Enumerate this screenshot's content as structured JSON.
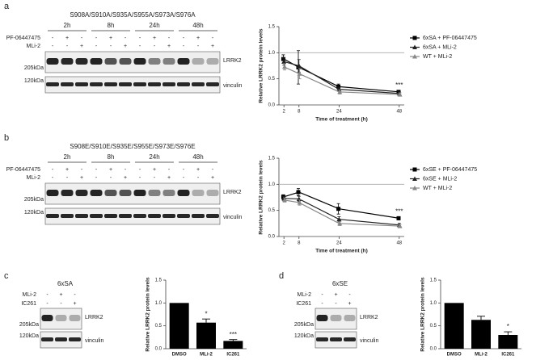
{
  "panels": [
    {
      "label": "a",
      "blot": {
        "title": "S908A/S910A/S935A/S955A/S973A/S976A",
        "groups": [
          "2h",
          "8h",
          "24h",
          "48h"
        ],
        "rows": [
          {
            "name": "PF-06447475",
            "signs": [
              "-",
              "+",
              "-",
              "-",
              "+",
              "-",
              "-",
              "+",
              "-",
              "-",
              "+",
              "-"
            ]
          },
          {
            "name": "MLi-2",
            "signs": [
              "-",
              "-",
              "+",
              "-",
              "-",
              "+",
              "-",
              "-",
              "+",
              "-",
              "-",
              "+"
            ]
          }
        ],
        "markers": [
          "205kDa",
          "120kDa"
        ],
        "bands": [
          "LRRK2",
          "vinculin"
        ]
      }
    },
    {
      "label": "b",
      "blot": {
        "title": "S908E/S910E/S935E/S955E/S973E/S976E",
        "groups": [
          "2h",
          "8h",
          "24h",
          "48h"
        ],
        "rows": [
          {
            "name": "PF-06447475",
            "signs": [
              "-",
              "+",
              "-",
              "-",
              "+",
              "-",
              "-",
              "+",
              "-",
              "-",
              "+",
              "-"
            ]
          },
          {
            "name": "MLi-2",
            "signs": [
              "-",
              "-",
              "+",
              "-",
              "-",
              "+",
              "-",
              "-",
              "+",
              "-",
              "-",
              "+"
            ]
          }
        ],
        "markers": [
          "205kDa",
          "120kDa"
        ],
        "bands": [
          "LRRK2",
          "vinculin"
        ]
      }
    },
    {
      "label": "c",
      "blot": {
        "title": "6xSA",
        "rows": [
          {
            "name": "MLi-2",
            "signs": [
              "-",
              "+",
              "-"
            ]
          },
          {
            "name": "IC261",
            "signs": [
              "-",
              "-",
              "+"
            ]
          }
        ],
        "markers": [
          "205kDa",
          "120kDa"
        ],
        "bands": [
          "LRRK2",
          "vinculin"
        ]
      }
    },
    {
      "label": "d",
      "blot": {
        "title": "6xSE",
        "rows": [
          {
            "name": "MLi-2",
            "signs": [
              "-",
              "+",
              "-"
            ]
          },
          {
            "name": "IC261",
            "signs": [
              "-",
              "-",
              "+"
            ]
          }
        ],
        "markers": [
          "205kDa",
          "120kDa"
        ],
        "bands": [
          "LRRK2",
          "vinculin"
        ]
      }
    }
  ],
  "chart_data": [
    {
      "type": "line",
      "y_label": "Relative LRRK2 protein levels",
      "x_label": "Time of treatment (h)",
      "x": [
        2,
        8,
        24,
        48
      ],
      "xlim": [
        0,
        50
      ],
      "xticks": [
        2,
        8,
        24,
        48
      ],
      "ylim": [
        0,
        1.5
      ],
      "yticks": [
        {
          "value": 0,
          "label": "0.0"
        },
        {
          "value": 0.5,
          "label": "0.5"
        },
        {
          "value": 1,
          "label": "1.0"
        },
        {
          "value": 1.5,
          "label": "1.5"
        }
      ],
      "reference_line": 1,
      "annotation": "***",
      "legend": "right",
      "series": [
        {
          "name": "6xSA + PF-06447475",
          "color": "#000000",
          "marker": "square",
          "values": [
            0.88,
            0.72,
            0.35,
            0.25
          ],
          "errors": [
            0.08,
            0.32,
            0.05,
            0.03
          ]
        },
        {
          "name": "6xSA + MLi-2",
          "color": "#222222",
          "marker": "triangle",
          "values": [
            0.83,
            0.75,
            0.3,
            0.22
          ],
          "errors": [
            0.07,
            0.12,
            0.04,
            0.03
          ]
        },
        {
          "name": "WT + MLi-2",
          "color": "#888888",
          "marker": "triangle",
          "values": [
            0.73,
            0.6,
            0.25,
            0.2
          ],
          "errors": [
            0.06,
            0.1,
            0.04,
            0.03
          ]
        }
      ]
    },
    {
      "type": "line",
      "y_label": "Relative LRRK2 protein levels",
      "x_label": "Time of treatment (h)",
      "x": [
        2,
        8,
        24,
        48
      ],
      "xlim": [
        0,
        50
      ],
      "xticks": [
        2,
        8,
        24,
        48
      ],
      "ylim": [
        0,
        1.5
      ],
      "yticks": [
        {
          "value": 0,
          "label": "0.0"
        },
        {
          "value": 0.5,
          "label": "0.5"
        },
        {
          "value": 1,
          "label": "1.0"
        },
        {
          "value": 1.5,
          "label": "1.5"
        }
      ],
      "reference_line": 1,
      "annotation": "***",
      "legend": "right",
      "series": [
        {
          "name": "6xSE + PF-06447475",
          "color": "#000000",
          "marker": "square",
          "values": [
            0.76,
            0.85,
            0.53,
            0.35
          ],
          "errors": [
            0.04,
            0.07,
            0.1,
            0.03
          ]
        },
        {
          "name": "6xSE + MLi-2",
          "color": "#222222",
          "marker": "triangle",
          "values": [
            0.73,
            0.72,
            0.33,
            0.22
          ],
          "errors": [
            0.04,
            0.05,
            0.05,
            0.03
          ]
        },
        {
          "name": "WT + MLi-2",
          "color": "#888888",
          "marker": "triangle",
          "values": [
            0.7,
            0.65,
            0.25,
            0.2
          ],
          "errors": [
            0.04,
            0.05,
            0.04,
            0.03
          ]
        }
      ]
    },
    {
      "type": "bar",
      "y_label": "Relative LRRK2 protein levels",
      "categories": [
        "DMSO",
        "MLi-2",
        "IC261"
      ],
      "values": [
        1,
        0.57,
        0.17
      ],
      "errors": [
        null,
        0.08,
        0.03
      ],
      "annotations": [
        null,
        "*",
        "***"
      ],
      "color": "#000000",
      "ylim": [
        0,
        1.5
      ],
      "yticks": [
        {
          "value": 0,
          "label": "0.0"
        },
        {
          "value": 0.5,
          "label": "0.5"
        },
        {
          "value": 1,
          "label": "1.0"
        },
        {
          "value": 1.5,
          "label": "1.5"
        }
      ]
    },
    {
      "type": "bar",
      "y_label": "Relative LRRK2 protein levels",
      "categories": [
        "DMSO",
        "MLi-2",
        "IC261"
      ],
      "values": [
        1,
        0.63,
        0.3
      ],
      "errors": [
        null,
        0.08,
        0.07
      ],
      "annotations": [
        null,
        null,
        "*"
      ],
      "color": "#000000",
      "ylim": [
        0,
        1.5
      ],
      "yticks": [
        {
          "value": 0,
          "label": "0.0"
        },
        {
          "value": 0.5,
          "label": "0.5"
        },
        {
          "value": 1,
          "label": "1.0"
        },
        {
          "value": 1.5,
          "label": "1.5"
        }
      ]
    }
  ]
}
